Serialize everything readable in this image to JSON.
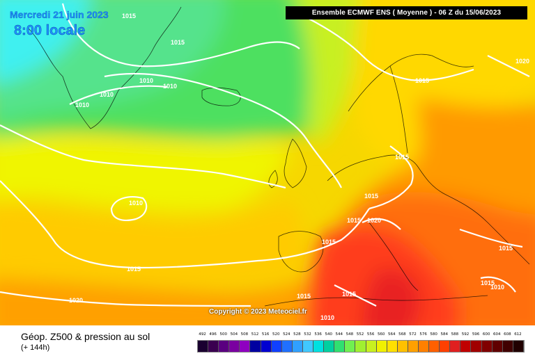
{
  "header": {
    "model_run": "Ensemble ECMWF ENS  ( Moyenne )  - 06 Z du 15/06/2023",
    "date": "Mercredi 21 juin 2023",
    "local_time": "8:00 locale"
  },
  "map": {
    "isobar_labels": [
      "1015",
      "1015",
      "1010",
      "1010",
      "1010",
      "1010",
      "1015",
      "1015",
      "1020",
      "1010",
      "1015",
      "1015",
      "1015",
      "1020",
      "1015",
      "1015",
      "1015",
      "1010",
      "1020",
      "1015",
      "1015",
      "1010"
    ],
    "isobar_color": "#ffffff"
  },
  "copyright": "Copyright © 2023 Meteociel.fr",
  "footer": {
    "title": "Géop. Z500 & pression au sol",
    "forecast_step": "(+ 144h)"
  },
  "legend": {
    "values": [
      "492",
      "496",
      "500",
      "504",
      "508",
      "512",
      "516",
      "520",
      "524",
      "528",
      "532",
      "536",
      "540",
      "544",
      "548",
      "552",
      "556",
      "560",
      "564",
      "568",
      "572",
      "576",
      "580",
      "584",
      "588",
      "592",
      "596",
      "600",
      "604",
      "608",
      "612"
    ],
    "colors": [
      "#1a0030",
      "#3a0050",
      "#5a0080",
      "#7a00a0",
      "#8f00c0",
      "#0000a0",
      "#0000d0",
      "#1040ff",
      "#2070ff",
      "#30a0ff",
      "#40c8ff",
      "#00e0e0",
      "#00d0a0",
      "#30e070",
      "#70f050",
      "#a0f030",
      "#c8f020",
      "#f0f000",
      "#ffe000",
      "#ffc000",
      "#ffa000",
      "#ff8000",
      "#ff6000",
      "#ff4000",
      "#e02020",
      "#c00000",
      "#a00000",
      "#800000",
      "#600000",
      "#400000",
      "#200000"
    ]
  }
}
